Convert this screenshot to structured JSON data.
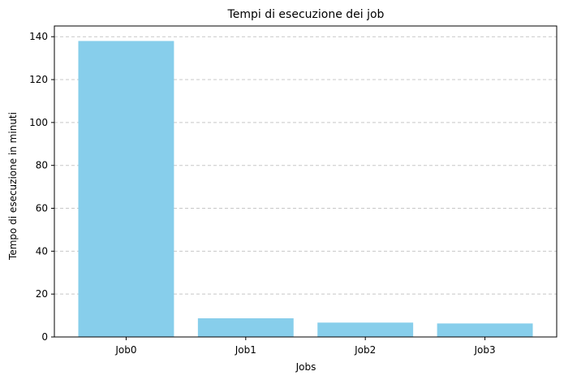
{
  "chart_data": {
    "type": "bar",
    "title": "Tempi di esecuzione dei job",
    "xlabel": "Jobs",
    "ylabel": "Tempo di esecuzione in minuti",
    "categories": [
      "Job0",
      "Job1",
      "Job2",
      "Job3"
    ],
    "values": [
      138.0,
      8.7,
      6.7,
      6.3
    ],
    "ylim": [
      0,
      145
    ],
    "yticks": [
      0,
      20,
      40,
      60,
      80,
      100,
      120,
      140
    ],
    "grid": "y-dashed",
    "colors": {
      "bar": "#87ceeb",
      "grid": "#c8c8c8",
      "axis": "#000000"
    }
  }
}
